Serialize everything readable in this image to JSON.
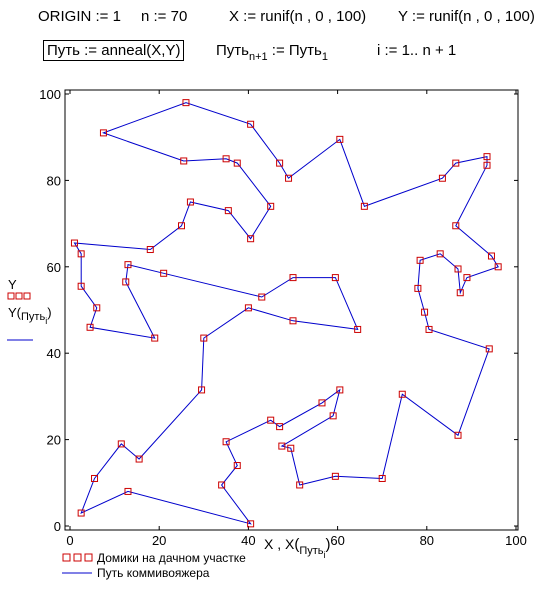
{
  "header": {
    "line1": [
      "ORIGIN := 1",
      "n := 70",
      "X := runif(n , 0 , 100)",
      "Y := runif(n , 0 , 100)"
    ],
    "line2_boxed": "Путь := anneal(X,Y)",
    "line2_mid_a": "Путь",
    "line2_mid_sub1": "n+1",
    "line2_mid_b": " := Путь",
    "line2_mid_sub2": "1",
    "line2_range": "i := 1.. n + 1"
  },
  "side_legend": {
    "y_label": "Y",
    "y_path_label_a": "Y",
    "y_path_label_sub": "Путь",
    "y_path_label_subsub": "i"
  },
  "x_axis_label": {
    "main": "X , X",
    "sub": "Путь",
    "subsub": "i"
  },
  "legend": {
    "houses": "Домики на дачном участке",
    "path": "Путь коммивояжера"
  },
  "colors": {
    "marker": "#cc0000",
    "path": "#0000cc",
    "axis": "#000000"
  },
  "chart_data": {
    "type": "scatter",
    "xlim": [
      0,
      100
    ],
    "ylim": [
      0,
      100
    ],
    "x_ticks": [
      0,
      20,
      40,
      60,
      80,
      100
    ],
    "y_ticks": [
      0,
      20,
      40,
      60,
      80,
      100
    ],
    "grid": false,
    "series": [
      {
        "name": "Домики на дачном участке",
        "style": "markers",
        "points": [
          [
            7.5,
            91
          ],
          [
            26,
            98
          ],
          [
            40.5,
            93
          ],
          [
            47,
            84
          ],
          [
            49,
            80.5
          ],
          [
            60.5,
            89.5
          ],
          [
            66,
            74
          ],
          [
            83.5,
            80.5
          ],
          [
            86.5,
            84
          ],
          [
            93.5,
            85.5
          ],
          [
            93.5,
            83.5
          ],
          [
            86.5,
            69.5
          ],
          [
            94.5,
            62.5
          ],
          [
            96,
            60
          ],
          [
            89,
            57.5
          ],
          [
            87.5,
            54
          ],
          [
            87,
            59.5
          ],
          [
            83,
            63
          ],
          [
            78.5,
            61.5
          ],
          [
            78,
            55
          ],
          [
            79.5,
            49.5
          ],
          [
            80.5,
            45.5
          ],
          [
            94,
            41
          ],
          [
            87,
            21
          ],
          [
            74.5,
            30.5
          ],
          [
            70,
            11
          ],
          [
            59.5,
            11.5
          ],
          [
            51.5,
            9.5
          ],
          [
            49.5,
            18
          ],
          [
            47.5,
            18.5
          ],
          [
            59,
            25.5
          ],
          [
            60.5,
            31.5
          ],
          [
            56.5,
            28.5
          ],
          [
            47,
            23
          ],
          [
            45,
            24.5
          ],
          [
            35,
            19.5
          ],
          [
            37.5,
            14
          ],
          [
            34,
            9.5
          ],
          [
            40.5,
            0.5
          ],
          [
            13,
            8
          ],
          [
            2.5,
            3
          ],
          [
            5.5,
            11
          ],
          [
            11.5,
            19
          ],
          [
            15.5,
            15.5
          ],
          [
            29.5,
            31.5
          ],
          [
            30,
            43.5
          ],
          [
            40,
            50.5
          ],
          [
            50,
            47.5
          ],
          [
            64.5,
            45.5
          ],
          [
            59.5,
            57.5
          ],
          [
            50,
            57.5
          ],
          [
            43,
            53
          ],
          [
            21,
            58.5
          ],
          [
            13,
            60.5
          ],
          [
            12.5,
            56.5
          ],
          [
            19,
            43.5
          ],
          [
            4.5,
            46
          ],
          [
            6,
            50.5
          ],
          [
            2.5,
            55.5
          ],
          [
            2.5,
            63
          ],
          [
            1,
            65.5
          ],
          [
            18,
            64
          ],
          [
            25,
            69.5
          ],
          [
            27,
            75
          ],
          [
            35.5,
            73
          ],
          [
            40.5,
            66.5
          ],
          [
            45,
            74
          ],
          [
            37.5,
            84
          ],
          [
            35,
            85
          ],
          [
            25.5,
            84.5
          ]
        ]
      },
      {
        "name": "Путь коммивояжера",
        "style": "line",
        "closed": true
      }
    ]
  }
}
